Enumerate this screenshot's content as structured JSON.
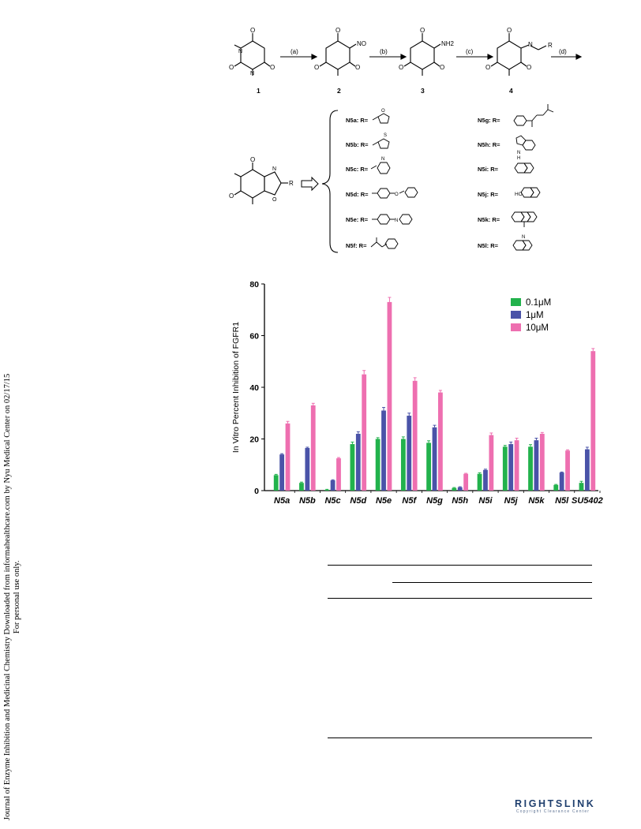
{
  "side_note": {
    "line1": "Journal of Enzyme Inhibition and Medicinal Chemistry Downloaded from informahealthcare.com by Nyu Medical Center on 02/17/15",
    "line2": "For personal use only."
  },
  "scheme": {
    "steps": [
      "(a)",
      "(b)",
      "(c)",
      "(d)"
    ],
    "compound_numbers": [
      "1",
      "2",
      "3",
      "4"
    ],
    "labels_left": [
      "N5a:",
      "N5b:",
      "N5c:",
      "N5d:",
      "N5e:",
      "N5f:"
    ],
    "labels_right": [
      "N5g:",
      "N5h:",
      "N5i:",
      "N5j:",
      "N5k:",
      "N5l:"
    ],
    "r_eq": "R=",
    "atoms": {
      "o": "O",
      "n": "N",
      "no": "NO",
      "nh2": "NH2",
      "r": "R",
      "s": "S",
      "ho": "HO",
      "h": "H"
    }
  },
  "chart_data": {
    "type": "bar",
    "ylabel": "In Vitro Percent Inhibition of FGFR1",
    "xlabel": "",
    "ylim": [
      0,
      80
    ],
    "yticks": [
      0,
      20,
      40,
      60,
      80
    ],
    "grid": false,
    "legend_position": "top-right",
    "categories": [
      "N5a",
      "N5b",
      "N5c",
      "N5d",
      "N5e",
      "N5f",
      "N5g",
      "N5h",
      "N5i",
      "N5j",
      "N5k",
      "N5l",
      "SU5402"
    ],
    "series": [
      {
        "name": "0.1μM",
        "color": "#22b24c",
        "values": [
          6,
          3,
          0.3,
          18,
          20,
          20,
          18.5,
          1,
          6.5,
          17,
          17,
          2.2,
          3
        ]
      },
      {
        "name": "1μM",
        "color": "#4a53a8",
        "values": [
          14,
          16.5,
          4,
          22,
          31,
          29,
          24.5,
          1.3,
          8,
          18,
          19.5,
          7,
          16
        ]
      },
      {
        "name": "10μM",
        "color": "#ee6fb0",
        "values": [
          26,
          33,
          12.5,
          45,
          73,
          42.5,
          38,
          6.5,
          21.5,
          19.5,
          22,
          15.5,
          54
        ]
      }
    ],
    "errors": [
      [
        0.3,
        0.3,
        0.2,
        0.8,
        0.5,
        0.8,
        0.8,
        0.2,
        0.4,
        0.5,
        0.8,
        0.2,
        0.6
      ],
      [
        0.3,
        0.3,
        0.2,
        0.8,
        1.2,
        1.0,
        0.8,
        0.2,
        0.3,
        0.8,
        0.8,
        0.2,
        0.8
      ],
      [
        0.8,
        0.8,
        0.3,
        1.5,
        1.8,
        1.2,
        0.8,
        0.2,
        0.8,
        0.8,
        0.5,
        0.3,
        1.0
      ]
    ]
  },
  "logo": {
    "main": "RIGHTSLINK",
    "sub": "Copyright Clearance Center"
  }
}
